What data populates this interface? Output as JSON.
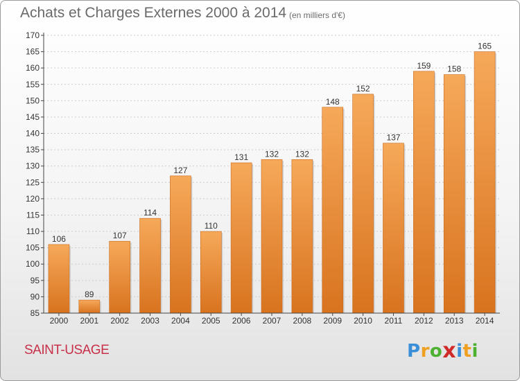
{
  "header": {
    "title": "Achats et Charges Externes 2000 à 2014",
    "subtitle": "(en milliers d'€)"
  },
  "footer": {
    "place": "SAINT-USAGE",
    "logo_letters": [
      "P",
      "r",
      "o",
      "x",
      "i",
      "t",
      "i"
    ],
    "logo_colors": [
      "#3a8fd8",
      "#f0a020",
      "#4cb030",
      "#d02a2a",
      "#3a8fd8",
      "#f0a020",
      "#4cb030"
    ]
  },
  "colors": {
    "bar_light": "#f6a95a",
    "bar_dark": "#d8731f",
    "axis": "#444444",
    "grid": "#cccccc",
    "label_text": "#333333"
  },
  "chart_data": {
    "type": "bar",
    "title": "Achats et Charges Externes 2000 à 2014",
    "subtitle": "(en milliers d'€)",
    "categories": [
      "2000",
      "2001",
      "2002",
      "2003",
      "2004",
      "2005",
      "2006",
      "2007",
      "2008",
      "2009",
      "2010",
      "2011",
      "2012",
      "2013",
      "2014"
    ],
    "values": [
      106,
      89,
      107,
      114,
      127,
      110,
      131,
      132,
      132,
      148,
      152,
      137,
      159,
      158,
      165
    ],
    "data_labels": [
      "106",
      "89",
      "107",
      "114",
      "127",
      "110",
      "131",
      "132",
      "132",
      "148",
      "152",
      "137",
      "159",
      "158",
      "165"
    ],
    "ylim": [
      85,
      170
    ],
    "yticks": [
      85,
      90,
      95,
      100,
      105,
      110,
      115,
      120,
      125,
      130,
      135,
      140,
      145,
      150,
      155,
      160,
      165,
      170
    ],
    "ytick_labels": [
      "85",
      "90",
      "95",
      "100",
      "105",
      "110",
      "115",
      "120",
      "125",
      "130",
      "135",
      "140",
      "145",
      "150",
      "155",
      "160",
      "165",
      "170"
    ],
    "xlabel": "",
    "ylabel": "",
    "grid": true,
    "legend": "none"
  }
}
